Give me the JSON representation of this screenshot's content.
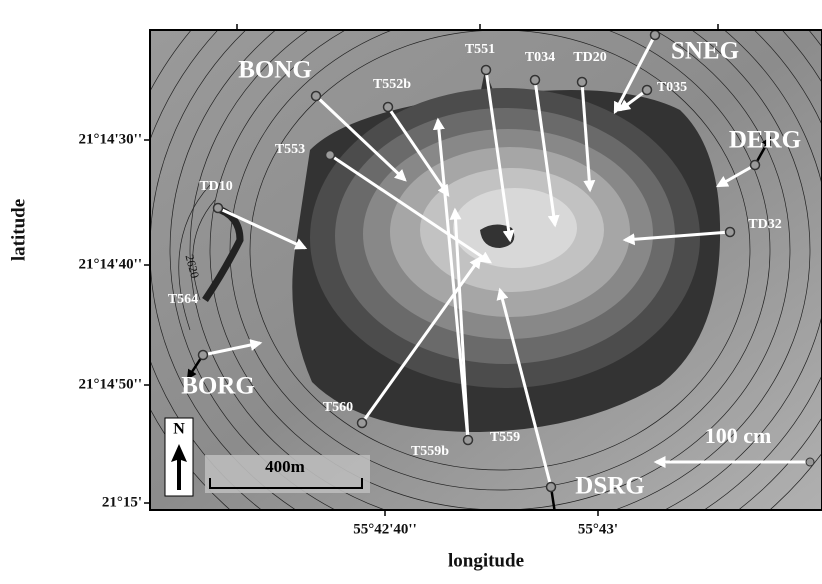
{
  "axes": {
    "x_label": "longitude",
    "y_label": "latitude",
    "x_ticks": [
      "55°42'40''",
      "55°43'"
    ],
    "y_ticks": [
      "21°14'30''",
      "21°14'40''",
      "21°14'50''",
      "21°15'"
    ]
  },
  "stations": [
    "BONG",
    "SNEG",
    "DERG",
    "BORG",
    "DSRG",
    "T551",
    "T034",
    "TD20",
    "T035",
    "T552b",
    "T553",
    "TD10",
    "T564",
    "TD32",
    "T560",
    "T559b",
    "T559"
  ],
  "contour_labels": [
    "2620"
  ],
  "north": "N",
  "scale_bar": "400m",
  "displacement_scale": "100 cm"
}
